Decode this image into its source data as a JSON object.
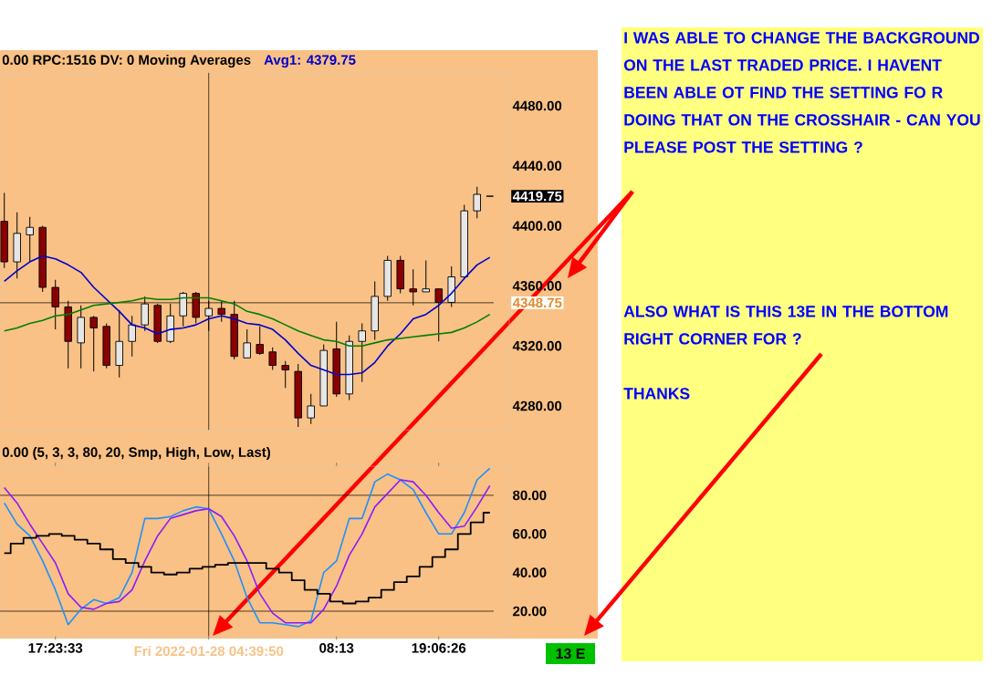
{
  "chart_data": [
    {
      "type": "candlestick",
      "title": "0.00 RPC:1516 DV: 0 Moving Averages",
      "categories": [
        null,
        null,
        null,
        null,
        "17:23:33",
        null,
        null,
        null,
        null,
        null,
        null,
        null,
        null,
        null,
        null,
        null,
        "Fri 2022-01-28 04:39:50",
        null,
        null,
        null,
        null,
        null,
        null,
        null,
        null,
        null,
        "08:13",
        null,
        null,
        null,
        null,
        null,
        null,
        null,
        "19:06:26",
        null,
        null,
        null,
        null
      ],
      "tick_labels": "y",
      "ohlc": [
        [
          4403,
          4422,
          4372,
          4376
        ],
        [
          4376,
          4409,
          4365,
          4395
        ],
        [
          4394,
          4406,
          4376,
          4399
        ],
        [
          4399,
          4400,
          4356,
          4359
        ],
        [
          4359,
          4364,
          4331,
          4346
        ],
        [
          4346,
          4350,
          4305,
          4323
        ],
        [
          4322,
          4347,
          4305,
          4339
        ],
        [
          4339,
          4340,
          4303,
          4332
        ],
        [
          4333,
          4335,
          4305,
          4307
        ],
        [
          4307,
          4344,
          4299,
          4323
        ],
        [
          4323,
          4340,
          4313,
          4334
        ],
        [
          4334,
          4353,
          4330,
          4348
        ],
        [
          4347,
          4348,
          4322,
          4323
        ],
        [
          4323,
          4348,
          4322,
          4340
        ],
        [
          4340,
          4356,
          4333,
          4355
        ],
        [
          4355,
          4356,
          4335,
          4339
        ],
        [
          4340,
          4350,
          4330,
          4345
        ],
        [
          4345,
          4350,
          4336,
          4341
        ],
        [
          4341,
          4350,
          4311,
          4313
        ],
        [
          4312,
          4331,
          4312,
          4322
        ],
        [
          4321,
          4333,
          4314,
          4315
        ],
        [
          4316,
          4319,
          4304,
          4307
        ],
        [
          4307,
          4310,
          4292,
          4304
        ],
        [
          4303,
          4308,
          4266,
          4272
        ],
        [
          4272,
          4288,
          4268,
          4280
        ],
        [
          4280,
          4321,
          4280,
          4317
        ],
        [
          4318,
          4336,
          4286,
          4288
        ],
        [
          4288,
          4327,
          4284,
          4323
        ],
        [
          4323,
          4335,
          4296,
          4330
        ],
        [
          4330,
          4363,
          4324,
          4353
        ],
        [
          4353,
          4380,
          4350,
          4377
        ],
        [
          4377,
          4380,
          4355,
          4358
        ],
        [
          4358,
          4371,
          4347,
          4356
        ],
        [
          4356,
          4377,
          4356,
          4358
        ],
        [
          4358,
          4358,
          4323,
          4349
        ],
        [
          4349,
          4373,
          4346,
          4366
        ],
        [
          4366,
          4414,
          4365,
          4410
        ],
        [
          4410,
          4426,
          4405,
          4421
        ],
        [
          4419.75,
          4419.75,
          4419.75,
          4419.75
        ]
      ],
      "series": [
        {
          "name": "Avg1: 4379.75",
          "type": "line",
          "color": "#0000cc",
          "values": [
            4363,
            4370,
            4376,
            4380,
            4378,
            4374,
            4369,
            4359,
            4351,
            4343,
            4334,
            4332,
            4328,
            4331,
            4332,
            4334,
            4338,
            4340,
            4338,
            4335,
            4334,
            4331,
            4324,
            4315,
            4307,
            4304,
            4301,
            4301,
            4302,
            4309,
            4320,
            4328,
            4338,
            4341,
            4347,
            4355,
            4365,
            4374,
            4379
          ]
        },
        {
          "type": "line",
          "color": "#008000",
          "values": [
            4330,
            4332,
            4335,
            4337,
            4340,
            4341,
            4344,
            4347,
            4348,
            4349,
            4350,
            4352,
            4351,
            4351,
            4352,
            4352,
            4352,
            4350,
            4348,
            4343,
            4341,
            4338,
            4334,
            4330,
            4327,
            4324,
            4323,
            4320,
            4320,
            4322,
            4324,
            4325,
            4326,
            4327,
            4328,
            4329,
            4332,
            4336,
            4341
          ]
        }
      ],
      "ylim": [
        4264,
        4502
      ],
      "yticks": [
        {
          "value": 4280,
          "label": "4280.00"
        },
        {
          "value": 4320,
          "label": "4320.00"
        },
        {
          "value": 4360,
          "label": "4360.00"
        },
        {
          "value": 4400,
          "label": "4400.00"
        },
        {
          "value": 4440,
          "label": "4440.00"
        },
        {
          "value": 4480,
          "label": "4480.00"
        }
      ],
      "ref_lines": [
        {
          "axis": "y",
          "value": 4348.75,
          "label": "4348.75"
        },
        {
          "axis": "x",
          "value": "Fri 2022-01-28 04:39:50"
        }
      ],
      "annotations": [
        "I WAS ABLE TO CHANGE THE BACKGROUND ON THE LAST TRADED PRICE. I HAVENT BEEN ABLE OT FIND THE SETTING FO R DOING THAT ON THE CROSSHAIR - CAN YOU PLEASE POST THE SETTING ?",
        "ALSO WHAT IS THIS 13E IN THE BOTTOM RIGHT CORNER FOR ?",
        "THANKS",
        "4419.75"
      ]
    },
    {
      "type": "line",
      "title": "0.00 (5, 3, 3, 80, 20, Smp, High, Low, Last)",
      "categories": [
        null,
        null,
        null,
        null,
        "17:23:33",
        null,
        null,
        null,
        null,
        null,
        null,
        null,
        null,
        null,
        null,
        null,
        "Fri 2022-01-28 04:39:50",
        null,
        null,
        null,
        null,
        null,
        null,
        null,
        null,
        null,
        "08:13",
        null,
        null,
        null,
        null,
        null,
        null,
        null,
        "19:06:26",
        null,
        null,
        null,
        null
      ],
      "series": [
        {
          "type": "line",
          "color": "#1e90ff",
          "values": [
            76,
            65,
            59,
            46,
            31,
            13,
            21,
            26,
            24,
            27,
            40,
            68,
            68,
            69,
            72,
            74,
            73,
            60,
            46,
            27,
            14,
            14,
            13,
            12,
            15,
            40,
            46,
            68,
            68,
            87,
            91,
            88,
            83,
            71,
            60,
            60,
            71,
            88,
            94
          ]
        },
        {
          "type": "line",
          "color": "#8b1aff",
          "values": [
            84,
            76,
            65,
            55,
            45,
            29,
            22,
            21,
            24,
            25,
            31,
            46,
            59,
            68,
            70,
            72,
            73,
            69,
            59,
            46,
            29,
            19,
            14,
            14,
            14,
            21,
            33,
            49,
            60,
            74,
            81,
            88,
            87,
            80,
            71,
            63,
            64,
            74,
            85
          ]
        },
        {
          "type": "step",
          "color": "#000000",
          "values": [
            50,
            55,
            58,
            59,
            60,
            59,
            57,
            55,
            52,
            47,
            45,
            43,
            40,
            39,
            40,
            42,
            43,
            44,
            45,
            45,
            45,
            42,
            40,
            36,
            31,
            29,
            25,
            24,
            25,
            27,
            31,
            35,
            38,
            43,
            48,
            52,
            60,
            66,
            71
          ]
        }
      ],
      "ylim": [
        7,
        95
      ],
      "yticks": [
        {
          "value": 20,
          "label": "20.00"
        },
        {
          "value": 40,
          "label": "40.00"
        },
        {
          "value": 60,
          "label": "60.00"
        },
        {
          "value": 80,
          "label": "80.00"
        }
      ],
      "ref_lines": [
        {
          "axis": "y",
          "value": 80
        },
        {
          "axis": "y",
          "value": 20
        },
        {
          "axis": "x",
          "value": "Fri 2022-01-28 04:39:50"
        }
      ],
      "annotations": [
        "13 E"
      ]
    }
  ]
}
